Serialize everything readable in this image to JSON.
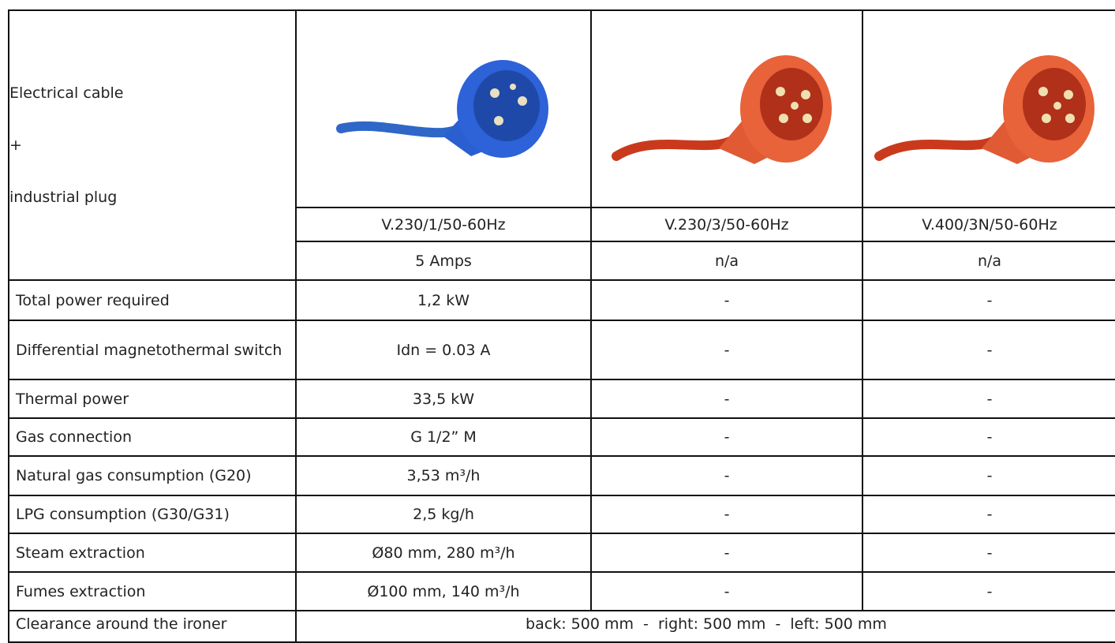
{
  "table": {
    "header": {
      "label": [
        "Electrical cable",
        "+",
        "industrial plug"
      ],
      "voltages": [
        "V.230/1/50-60Hz",
        "V.230/3/50-60Hz",
        "V.400/3N/50-60Hz"
      ],
      "amps": [
        "5 Amps",
        "n/a",
        "n/a"
      ]
    },
    "rows": [
      [
        "Total power required",
        "1,2 kW",
        "-",
        "-"
      ],
      [
        "Differential magnetothermal switch",
        "Idn = 0.03 A",
        "-",
        "-"
      ],
      [
        "Thermal power",
        "33,5 kW",
        "-",
        "-"
      ],
      [
        "Gas connection",
        "G 1/2” M",
        "-",
        "-"
      ],
      [
        "Natural gas consumption (G20)",
        "3,53 m³/h",
        "-",
        "-"
      ],
      [
        "LPG consumption (G30/G31)",
        "2,5 kg/h",
        "-",
        "-"
      ],
      [
        "Steam extraction",
        "Ø80 mm, 280 m³/h",
        "-",
        "-"
      ],
      [
        "Fumes extraction",
        "Ø100 mm, 140 m³/h",
        "-",
        "-"
      ]
    ],
    "clearance": {
      "label": "Clearance around the ironer",
      "value": "back: 500 mm  -  right: 500 mm  -  left: 500 mm"
    }
  }
}
